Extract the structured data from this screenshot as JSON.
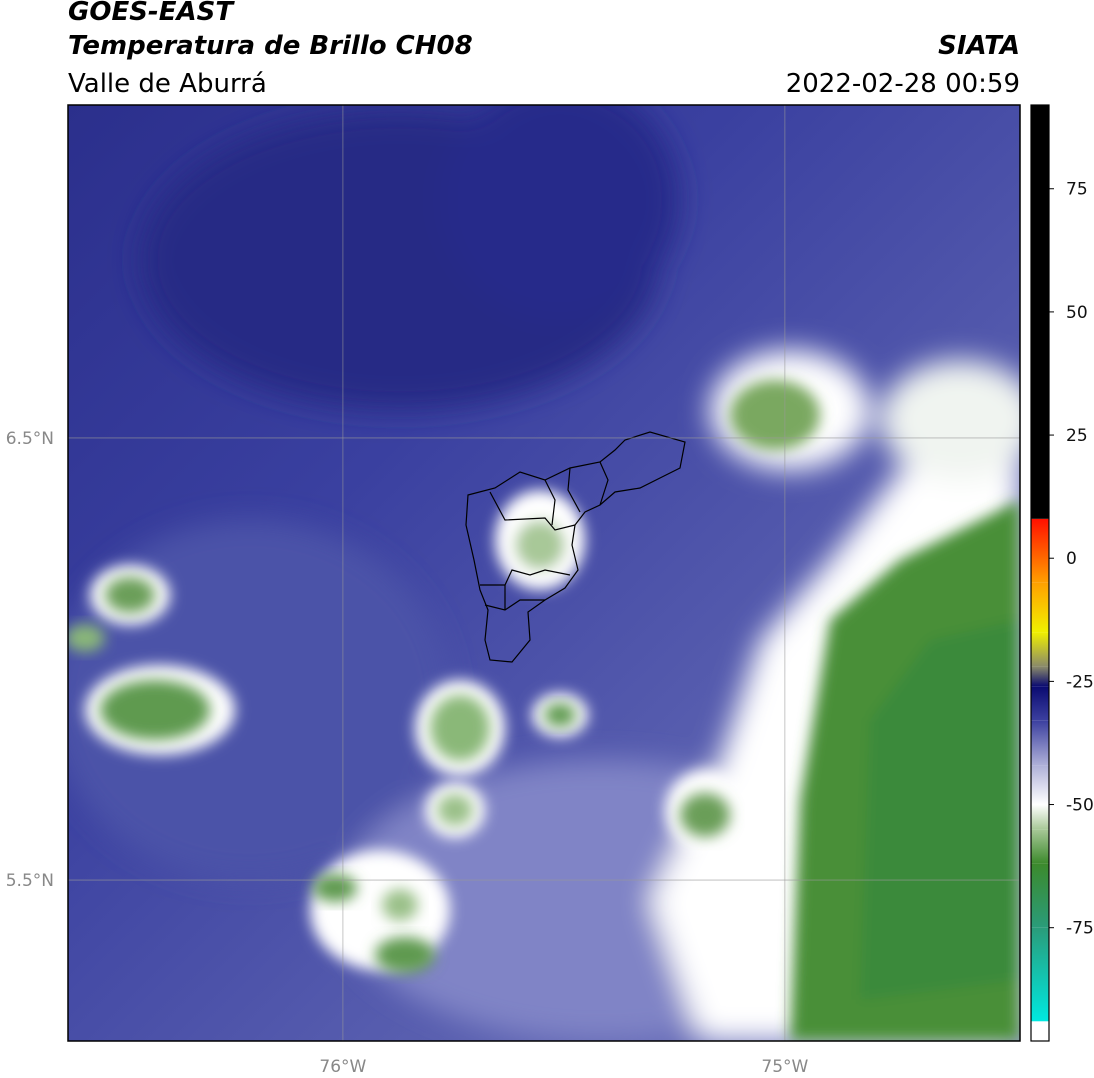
{
  "chart_data": {
    "type": "map",
    "title": "GOES-EAST",
    "subtitle": "Temperatura de Brillo CH08",
    "region": "Valle de Aburrá",
    "source": "SIATA",
    "datetime": "2022-02-28 00:59",
    "xlim": [
      -76.622,
      -74.468
    ],
    "ylim": [
      5.136,
      7.253
    ],
    "xticks": [
      {
        "value": -76,
        "label": "76°W"
      },
      {
        "value": -75,
        "label": "75°W"
      }
    ],
    "yticks": [
      {
        "value": 6.5,
        "label": "6.5°N"
      },
      {
        "value": 5.5,
        "label": "5.5°N"
      }
    ],
    "grid": true,
    "colorbar": {
      "lim": [
        -98,
        92
      ],
      "ticks": [
        75,
        50,
        25,
        0,
        -25,
        -50,
        -75
      ],
      "stops": [
        [
          -98,
          "#ffffff"
        ],
        [
          -94,
          "#ffffff"
        ],
        [
          -94,
          "#00e8e0"
        ],
        [
          -75,
          "#2a9c7a"
        ],
        [
          -62,
          "#3c8a2c"
        ],
        [
          -55,
          "#a8c898"
        ],
        [
          -50,
          "#ffffff"
        ],
        [
          -42,
          "#aeb0d8"
        ],
        [
          -33,
          "#3c40a0"
        ],
        [
          -26,
          "#0a0a70"
        ],
        [
          -22,
          "#8a8a6a"
        ],
        [
          -15,
          "#f0f000"
        ],
        [
          -5,
          "#ffa000"
        ],
        [
          8,
          "#ff1000"
        ],
        [
          8,
          "#000000"
        ],
        [
          92,
          "#000000"
        ]
      ]
    }
  }
}
